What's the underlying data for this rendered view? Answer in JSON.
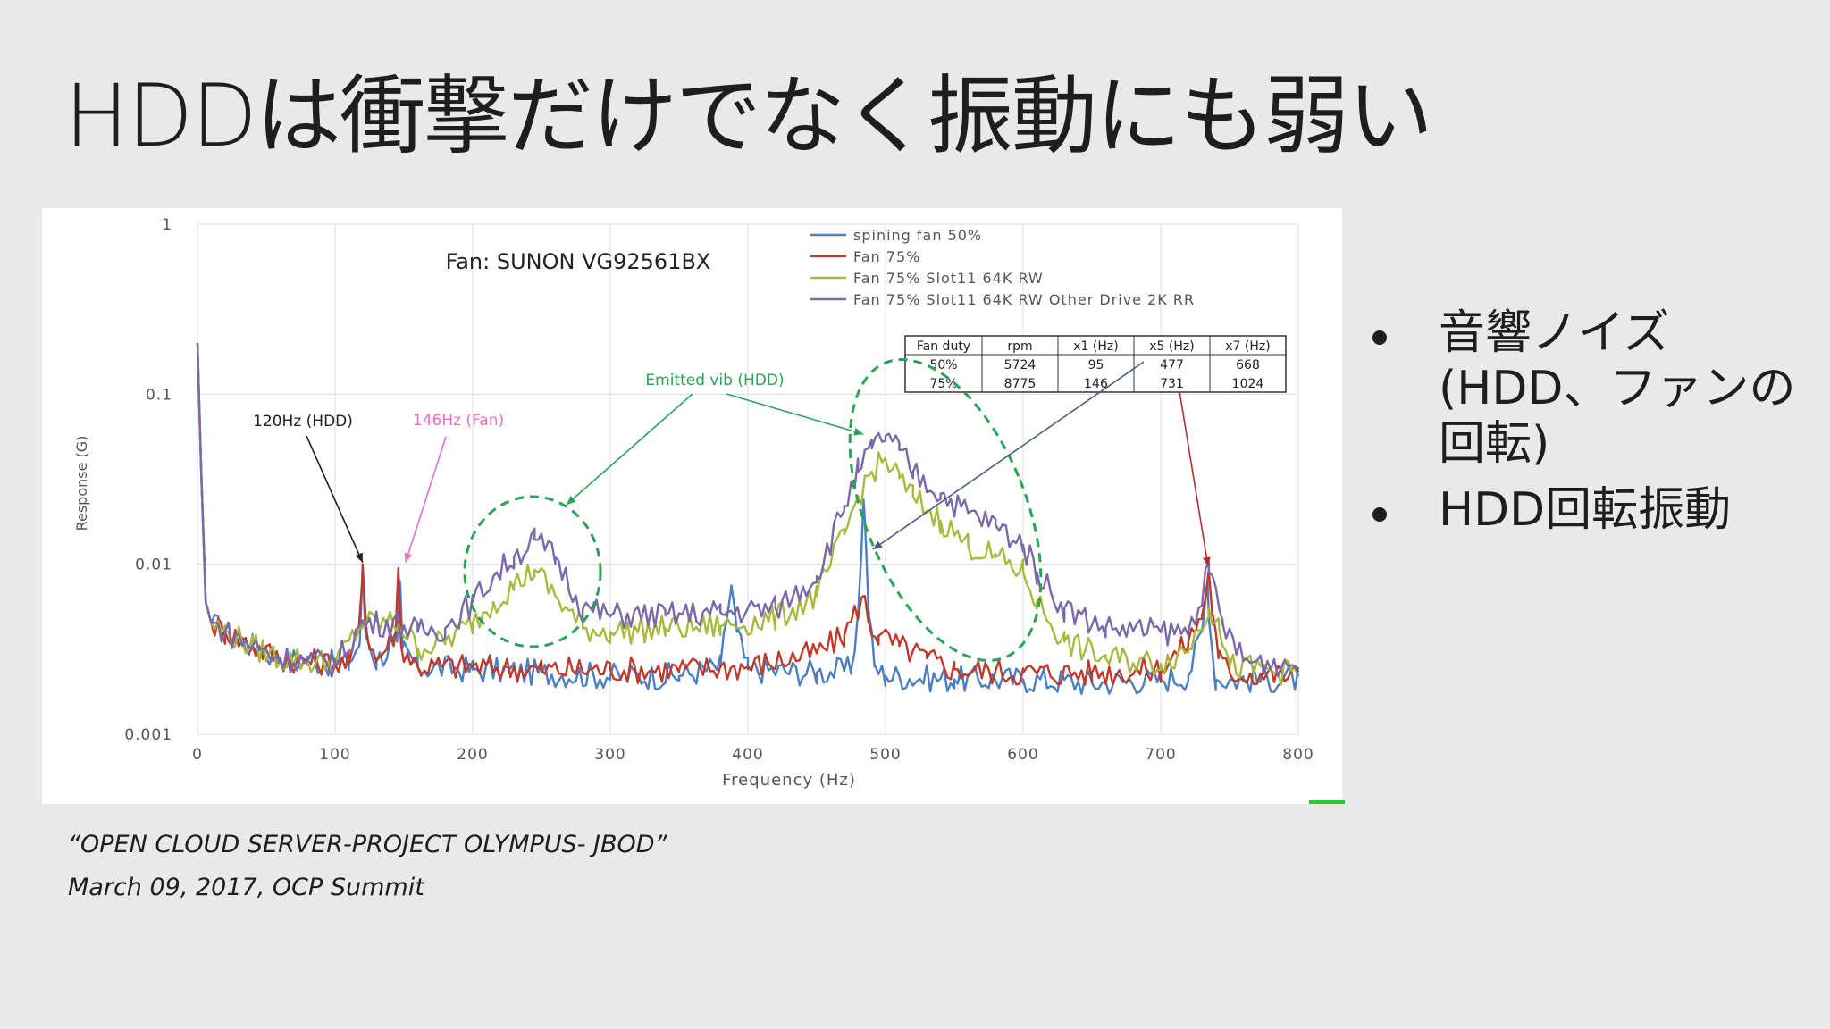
{
  "slide": {
    "title": "HDDは衝撃だけでなく振動にも弱い",
    "bullets": [
      "音響ノイズ(HDD、ファンの回転)",
      "HDD回転振動"
    ],
    "citation_line1": "“OPEN CLOUD SERVER-PROJECT OLYMPUS- JBOD”",
    "citation_line2": "March 09, 2017, OCP Summit"
  },
  "chart_data": {
    "type": "line",
    "title": "Fan: SUNON VG92561BX",
    "xlabel": "Frequency (Hz)",
    "ylabel": "Response (G)",
    "xlim": [
      0,
      800
    ],
    "ylim": [
      0.001,
      1
    ],
    "y_scale": "log",
    "grid": true,
    "legend_position": "top-right",
    "x_ticks": [
      "0",
      "100",
      "200",
      "300",
      "400",
      "500",
      "600",
      "700",
      "800"
    ],
    "y_ticks": [
      {
        "value": 1,
        "label": "1"
      },
      {
        "value": 0.1,
        "label": "0.1"
      },
      {
        "value": 0.01,
        "label": "0.01"
      },
      {
        "value": 0.001,
        "label": "0.001"
      }
    ],
    "series": [
      {
        "name": "spining fan 50%",
        "color": "#4a7fc1",
        "x": [
          0,
          3,
          6,
          10,
          20,
          40,
          60,
          80,
          100,
          110,
          118,
          120,
          122,
          130,
          145,
          147,
          149,
          160,
          200,
          250,
          300,
          350,
          380,
          385,
          388,
          392,
          400,
          450,
          475,
          480,
          484,
          486,
          488,
          492,
          500,
          550,
          600,
          650,
          700,
          720,
          730,
          734,
          736,
          740,
          760,
          800
        ],
        "y": [
          0.2,
          0.03,
          0.006,
          0.0045,
          0.004,
          0.0033,
          0.0028,
          0.0027,
          0.0026,
          0.0026,
          0.0035,
          0.009,
          0.004,
          0.0027,
          0.0035,
          0.008,
          0.0032,
          0.0025,
          0.0024,
          0.0023,
          0.0022,
          0.0022,
          0.0025,
          0.005,
          0.0075,
          0.004,
          0.0024,
          0.0023,
          0.0024,
          0.005,
          0.024,
          0.012,
          0.005,
          0.0025,
          0.0022,
          0.0021,
          0.0021,
          0.002,
          0.0021,
          0.0022,
          0.004,
          0.008,
          0.004,
          0.0021,
          0.0021,
          0.0021
        ]
      },
      {
        "name": "Fan 75%",
        "color": "#c0392b",
        "x": [
          0,
          3,
          6,
          10,
          20,
          40,
          60,
          80,
          100,
          110,
          117,
          120,
          123,
          130,
          144,
          146,
          148,
          160,
          200,
          250,
          300,
          350,
          400,
          450,
          470,
          484,
          488,
          495,
          510,
          530,
          550,
          600,
          650,
          700,
          720,
          730,
          735,
          738,
          742,
          750,
          800
        ],
        "y": [
          0.2,
          0.03,
          0.006,
          0.0045,
          0.004,
          0.0033,
          0.0028,
          0.0027,
          0.0026,
          0.0026,
          0.004,
          0.01,
          0.004,
          0.0027,
          0.004,
          0.0095,
          0.0033,
          0.0025,
          0.0025,
          0.0024,
          0.0024,
          0.0024,
          0.0025,
          0.003,
          0.0038,
          0.0065,
          0.0045,
          0.0038,
          0.0033,
          0.0028,
          0.0024,
          0.0023,
          0.0023,
          0.0024,
          0.0035,
          0.005,
          0.009,
          0.005,
          0.0028,
          0.0023,
          0.0022
        ]
      },
      {
        "name": "Fan 75% Slot11 64K RW",
        "color": "#a9b93d",
        "x": [
          0,
          3,
          6,
          10,
          20,
          40,
          60,
          80,
          100,
          120,
          146,
          160,
          180,
          200,
          215,
          230,
          245,
          260,
          280,
          300,
          340,
          380,
          420,
          450,
          470,
          480,
          490,
          500,
          510,
          520,
          540,
          560,
          580,
          600,
          610,
          630,
          660,
          700,
          720,
          735,
          742,
          750,
          800
        ],
        "y": [
          0.2,
          0.03,
          0.006,
          0.0045,
          0.004,
          0.0033,
          0.0028,
          0.0027,
          0.0026,
          0.0045,
          0.0045,
          0.0032,
          0.0035,
          0.0045,
          0.006,
          0.0075,
          0.0093,
          0.0065,
          0.0042,
          0.004,
          0.0042,
          0.0043,
          0.0048,
          0.0065,
          0.015,
          0.025,
          0.035,
          0.041,
          0.032,
          0.025,
          0.018,
          0.013,
          0.011,
          0.009,
          0.006,
          0.0035,
          0.0028,
          0.0026,
          0.0032,
          0.0055,
          0.0048,
          0.0025,
          0.0023
        ]
      },
      {
        "name": "Fan 75% Slot11 64K RW Other Drive 2K RR",
        "color": "#7b68a8",
        "x": [
          0,
          3,
          6,
          10,
          20,
          40,
          60,
          80,
          100,
          120,
          146,
          160,
          180,
          200,
          215,
          230,
          245,
          260,
          280,
          300,
          340,
          380,
          420,
          450,
          470,
          480,
          490,
          500,
          510,
          520,
          540,
          560,
          580,
          600,
          610,
          630,
          660,
          700,
          720,
          735,
          745,
          760,
          800
        ],
        "y": [
          0.2,
          0.03,
          0.006,
          0.0045,
          0.004,
          0.0033,
          0.0028,
          0.0027,
          0.0026,
          0.0045,
          0.0045,
          0.004,
          0.0042,
          0.006,
          0.0085,
          0.011,
          0.014,
          0.011,
          0.0055,
          0.005,
          0.005,
          0.0052,
          0.0055,
          0.0085,
          0.022,
          0.035,
          0.048,
          0.057,
          0.047,
          0.035,
          0.026,
          0.02,
          0.017,
          0.013,
          0.009,
          0.0055,
          0.0042,
          0.004,
          0.004,
          0.009,
          0.0045,
          0.0027,
          0.0026
        ]
      }
    ],
    "annotations": [
      {
        "text": "120Hz (HDD)",
        "color": "#222222",
        "x": 120,
        "y": 0.01
      },
      {
        "text": "146Hz (Fan)",
        "color": "#e86fbf",
        "x": 146,
        "y": 0.01
      },
      {
        "text": "Emitted vib (HDD)",
        "color": "#2aa356"
      }
    ],
    "table": {
      "columns": [
        "Fan duty",
        "rpm",
        "x1 (Hz)",
        "x5 (Hz)",
        "x7 (Hz)"
      ],
      "rows": [
        [
          "50%",
          "5724",
          "95",
          "477",
          "668"
        ],
        [
          "75%",
          "8775",
          "146",
          "731",
          "1024"
        ]
      ]
    }
  }
}
